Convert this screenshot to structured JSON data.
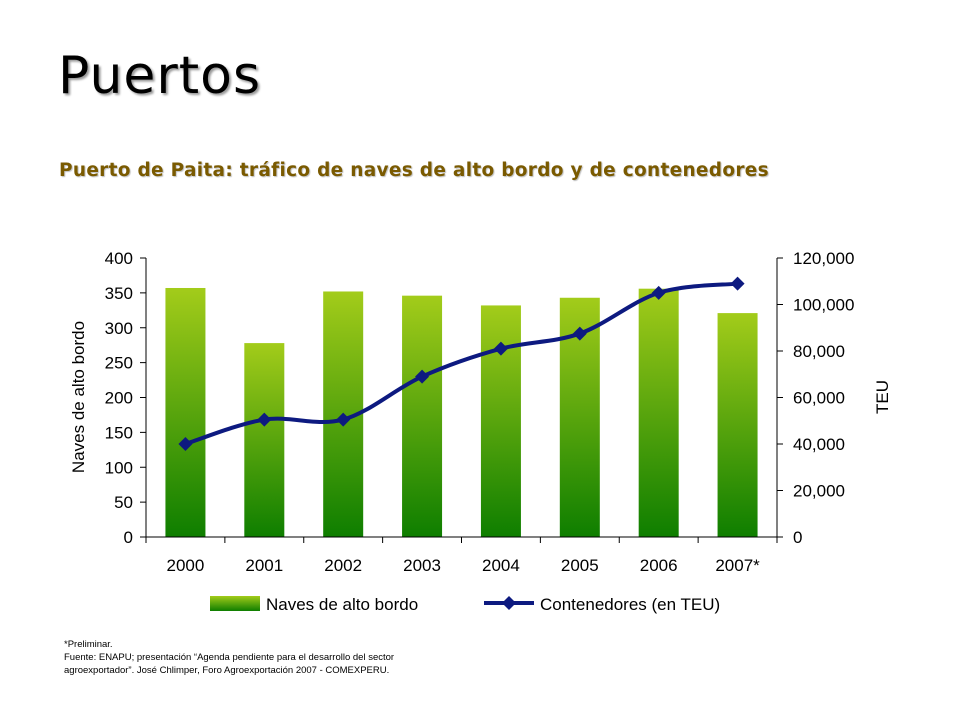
{
  "header": {
    "title": "Puertos",
    "subtitle": "Puerto de Paita: tráfico de naves de alto bordo y de contenedores"
  },
  "chart_data": {
    "type": "bar",
    "categories": [
      "2000",
      "2001",
      "2002",
      "2003",
      "2004",
      "2005",
      "2006",
      "2007*"
    ],
    "series": [
      {
        "name": "Naves de alto bordo",
        "type": "bar",
        "axis": "left",
        "values": [
          357,
          278,
          352,
          346,
          332,
          343,
          356,
          321
        ]
      },
      {
        "name": "Contenedores (en TEU)",
        "type": "line",
        "axis": "right",
        "values": [
          40000,
          50500,
          50500,
          69000,
          81000,
          87500,
          105000,
          109000
        ]
      }
    ],
    "ylabel": "Naves de alto bordo",
    "ylim": [
      0,
      400
    ],
    "yticks": [
      "0",
      "50",
      "100",
      "150",
      "200",
      "250",
      "300",
      "350",
      "400"
    ],
    "y2label": "TEU",
    "y2lim": [
      0,
      120000
    ],
    "y2ticks": [
      "0",
      "20,000",
      "40,000",
      "60,000",
      "80,000",
      "100,000",
      "120,000"
    ],
    "legend_position": "bottom",
    "grid": false,
    "colors": {
      "bar_top": "#a3cc1a",
      "bar_bottom": "#0e7e00",
      "line": "#0d1a80",
      "marker": "#0d1a80"
    }
  },
  "notes": {
    "line1": "*Preliminar.",
    "line2": "Fuente: ENAPU; presentación “Agenda pendiente para el desarrollo del sector",
    "line3": "agroexportador”. José Chlimper, Foro Agroexportación 2007 - COMEXPERU."
  }
}
